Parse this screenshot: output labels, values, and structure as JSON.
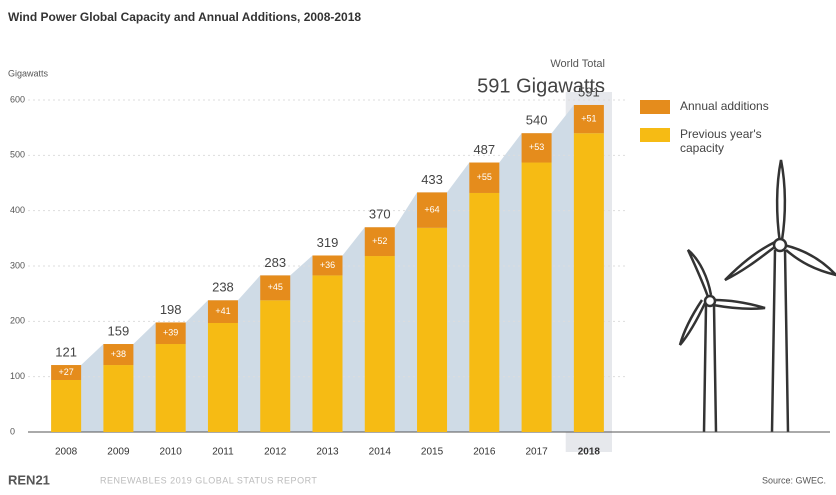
{
  "chart_data": {
    "type": "bar",
    "stacked": true,
    "title": "Wind Power Global Capacity and Annual Additions, 2008-2018",
    "y_label": "Gigawatts",
    "annotation_label": "World Total",
    "annotation_value": "591 Gigawatts",
    "categories": [
      "2008",
      "2009",
      "2010",
      "2011",
      "2012",
      "2013",
      "2014",
      "2015",
      "2016",
      "2017",
      "2018"
    ],
    "highlight": "2018",
    "series": [
      {
        "name": "Previous year's capacity",
        "color": "#f6bb14",
        "values": [
          94,
          121,
          159,
          197,
          238,
          283,
          318,
          369,
          432,
          487,
          540
        ]
      },
      {
        "name": "Annual additions",
        "color": "#e58c1c",
        "values": [
          27,
          38,
          39,
          41,
          45,
          36,
          52,
          64,
          55,
          53,
          51
        ],
        "value_labels": [
          "+27",
          "+38",
          "+39",
          "+41",
          "+45",
          "+36",
          "+52",
          "+64",
          "+55",
          "+53",
          "+51"
        ]
      }
    ],
    "totals": [
      121,
      159,
      198,
      238,
      283,
      319,
      370,
      433,
      487,
      540,
      591
    ],
    "ylim": [
      0,
      600
    ],
    "yticks": [
      0,
      100,
      200,
      300,
      400,
      500,
      600
    ],
    "grid": true,
    "legend_position": "right",
    "footer": {
      "brand": "REN21",
      "report": "RENEWABLES 2019 GLOBAL STATUS REPORT",
      "source": "Source: GWEC."
    }
  }
}
